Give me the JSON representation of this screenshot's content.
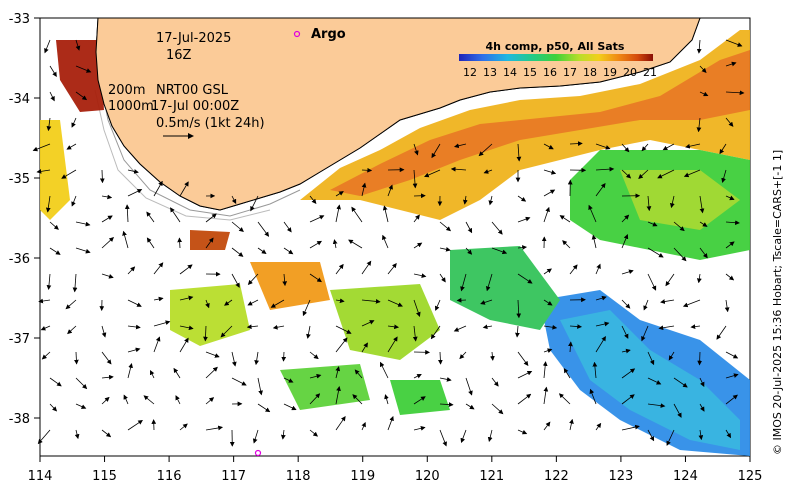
{
  "map": {
    "date": "17-Jul-2025",
    "hour": "16Z",
    "argo_label": "Argo",
    "depth_200": "200m",
    "model": "NRT00 GSL",
    "depth_1000": "1000m",
    "model_time": "17-Jul 00:00Z",
    "scale_label": "0.5m/s (1kt 24h)",
    "credit": "© IMOS 20-Jul-2025 15:36 Hobart; Tscale=CARS+[-1 1]",
    "lon_ticks": [
      "114",
      "115",
      "116",
      "117",
      "118",
      "119",
      "120",
      "121",
      "122",
      "123",
      "124",
      "125"
    ],
    "lat_ticks": [
      "-33",
      "-34",
      "-35",
      "-36",
      "-37",
      "-38"
    ],
    "colorbar": {
      "title": "4h comp, p50, All Sats",
      "ticks": [
        "12",
        "13",
        "14",
        "15",
        "16",
        "17",
        "18",
        "19",
        "20",
        "21"
      ]
    },
    "colors": {
      "land": "#FBCB98",
      "argo": "#e000e0",
      "coast": "#000000"
    }
  }
}
